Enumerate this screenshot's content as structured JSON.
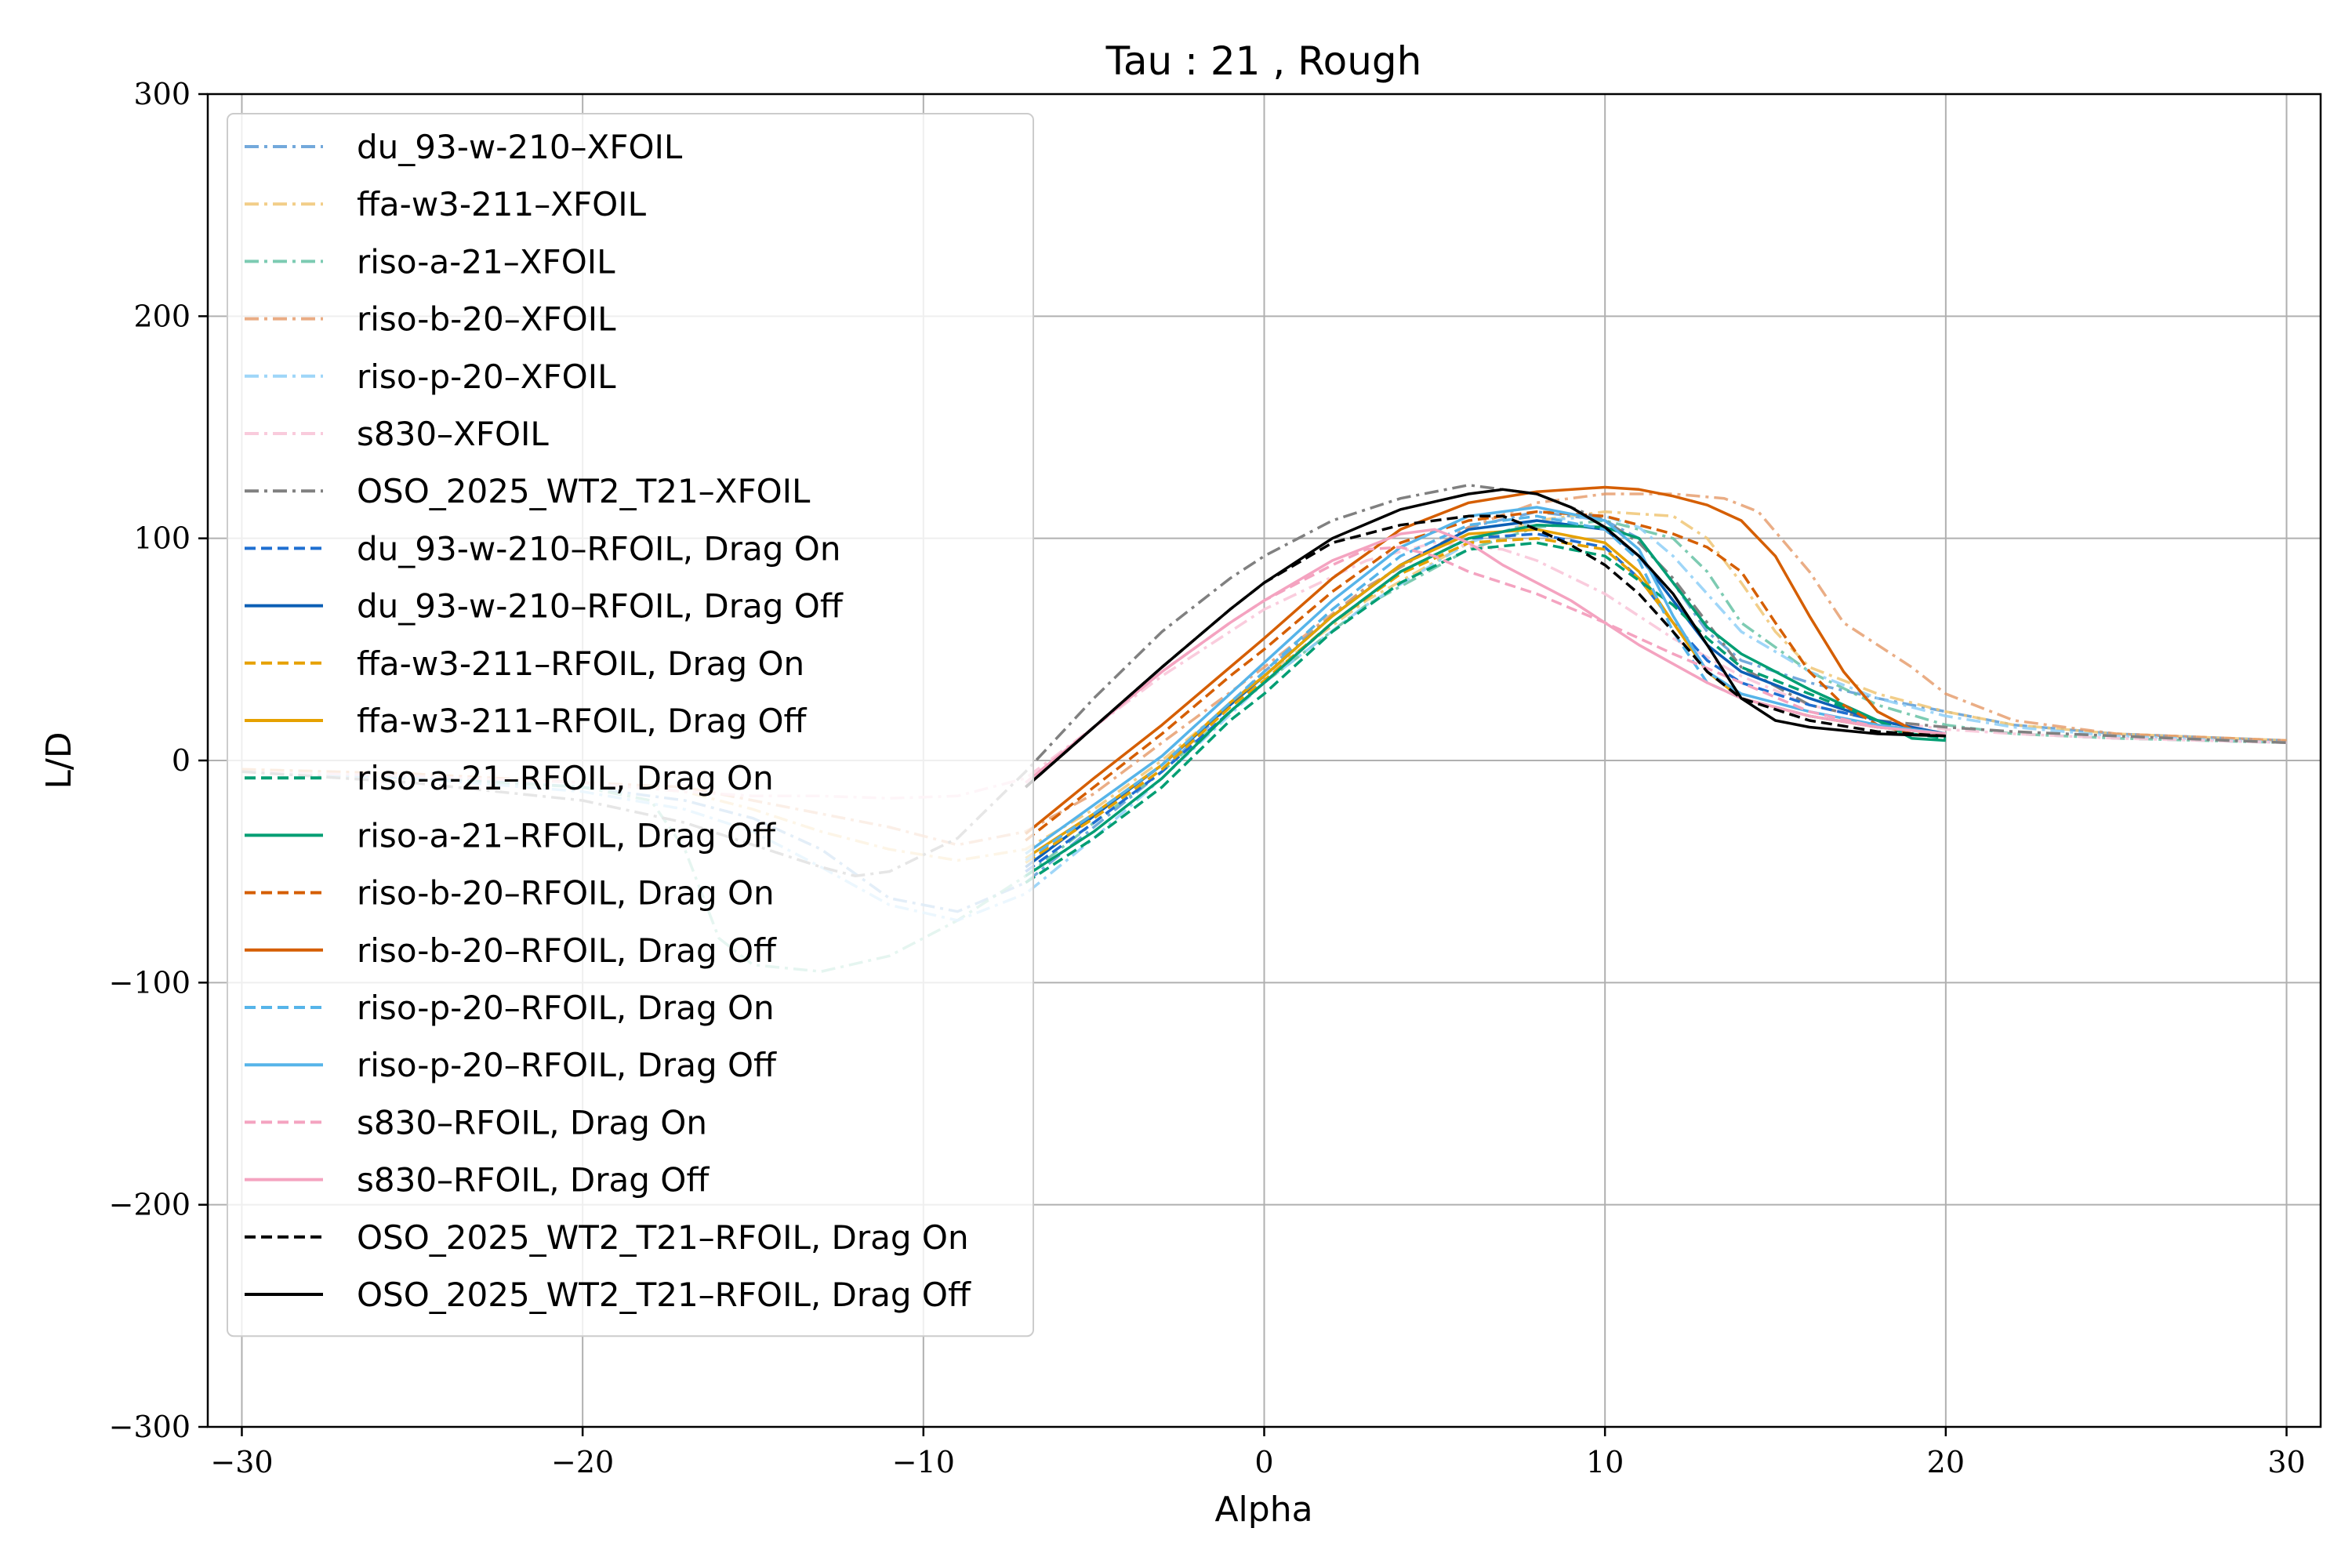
{
  "chart_data": {
    "type": "line",
    "title": "Tau : 21 , Rough",
    "xlabel": "Alpha",
    "ylabel": "L/D",
    "xlim": [
      -31,
      31
    ],
    "ylim": [
      -300,
      300
    ],
    "xticks": [
      -30,
      -20,
      -10,
      0,
      10,
      20,
      30
    ],
    "yticks": [
      -300,
      -200,
      -100,
      0,
      100,
      200,
      300
    ],
    "xtick_labels": [
      "−30",
      "−20",
      "−10",
      "0",
      "10",
      "20",
      "30"
    ],
    "ytick_labels": [
      "−300",
      "−200",
      "−100",
      "0",
      "100",
      "200",
      "300"
    ],
    "grid": true,
    "legend_position": "upper-left",
    "series": [
      {
        "name": "du_93-w-210–XFOIL",
        "color": "#5b9bd5",
        "dash": "dashdot",
        "alpha": 0.85,
        "x": [
          -30,
          -25,
          -20,
          -17,
          -15,
          -13,
          -11,
          -9,
          -7,
          -5,
          -3,
          0,
          3,
          6,
          8,
          10,
          11,
          12,
          13,
          14,
          16,
          18,
          20,
          22,
          25,
          30
        ],
        "y": [
          -5,
          -7,
          -12,
          -18,
          -26,
          -40,
          -62,
          -68,
          -55,
          -30,
          -5,
          40,
          78,
          105,
          112,
          108,
          100,
          80,
          58,
          45,
          35,
          28,
          22,
          16,
          12,
          9
        ]
      },
      {
        "name": "ffa-w3-211–XFOIL",
        "color": "#f0c674",
        "dash": "dashdot",
        "alpha": 0.85,
        "x": [
          -30,
          -25,
          -20,
          -17,
          -15,
          -13,
          -11,
          -9,
          -7,
          -5,
          -3,
          0,
          3,
          6,
          8,
          10,
          12,
          13,
          14,
          15,
          16,
          18,
          20,
          22,
          25,
          30
        ],
        "y": [
          -4,
          -6,
          -10,
          -14,
          -22,
          -32,
          -40,
          -45,
          -40,
          -22,
          0,
          38,
          72,
          98,
          108,
          112,
          110,
          100,
          80,
          58,
          42,
          30,
          22,
          16,
          12,
          9
        ]
      },
      {
        "name": "riso-a-21–XFOIL",
        "color": "#66c2a5",
        "dash": "dashdot",
        "alpha": 0.85,
        "x": [
          -30,
          -25,
          -20,
          -18,
          -17,
          -16,
          -15,
          -13,
          -11,
          -9,
          -7,
          -5,
          -3,
          0,
          3,
          6,
          8,
          10,
          12,
          13,
          14,
          16,
          18,
          20,
          22,
          25,
          30
        ],
        "y": [
          -5,
          -8,
          -12,
          -18,
          -40,
          -80,
          -92,
          -95,
          -88,
          -72,
          -52,
          -28,
          -5,
          35,
          70,
          95,
          105,
          108,
          100,
          85,
          62,
          40,
          25,
          16,
          12,
          10,
          8
        ]
      },
      {
        "name": "riso-b-20–XFOIL",
        "color": "#e59866",
        "dash": "dashdot",
        "alpha": 0.8,
        "x": [
          -30,
          -25,
          -20,
          -17,
          -15,
          -13,
          -11,
          -9,
          -7,
          -5,
          -3,
          0,
          3,
          6,
          8,
          10,
          12,
          13.5,
          14.5,
          16,
          17,
          19,
          20,
          22,
          25,
          30
        ],
        "y": [
          -4,
          -6,
          -10,
          -12,
          -18,
          -24,
          -30,
          -38,
          -32,
          -15,
          8,
          42,
          78,
          105,
          116,
          120,
          120,
          118,
          112,
          85,
          62,
          42,
          30,
          18,
          12,
          9
        ]
      },
      {
        "name": "riso-p-20–XFOIL",
        "color": "#8ecff7",
        "dash": "dashdot",
        "alpha": 0.85,
        "x": [
          -30,
          -25,
          -20,
          -17,
          -15,
          -13,
          -11,
          -9,
          -7,
          -5,
          -3,
          0,
          3,
          6,
          8,
          10,
          11,
          12,
          13,
          14,
          16,
          18,
          20,
          22,
          25,
          30
        ],
        "y": [
          -5,
          -8,
          -14,
          -22,
          -32,
          -48,
          -65,
          -72,
          -60,
          -35,
          -8,
          35,
          70,
          98,
          108,
          110,
          105,
          92,
          75,
          58,
          40,
          28,
          20,
          15,
          11,
          8
        ]
      },
      {
        "name": "s830–XFOIL",
        "color": "#f9c6d9",
        "dash": "dashdot",
        "alpha": 0.9,
        "x": [
          -30,
          -25,
          -20,
          -17,
          -15,
          -13,
          -11,
          -9,
          -7,
          -5,
          -3,
          0,
          3,
          5,
          7,
          8,
          10,
          12,
          14,
          16,
          18,
          20,
          22,
          25,
          30
        ],
        "y": [
          -5,
          -7,
          -10,
          -14,
          -16,
          -16,
          -17,
          -16,
          -8,
          15,
          38,
          68,
          90,
          98,
          95,
          90,
          75,
          55,
          38,
          25,
          18,
          14,
          12,
          10,
          8
        ]
      },
      {
        "name": "OSO_2025_WT2_T21–XFOIL",
        "color": "#808080",
        "dash": "dashdot",
        "alpha": 1,
        "x": [
          -30,
          -25,
          -20,
          -17,
          -15,
          -13,
          -12,
          -11,
          -9,
          -7,
          -5,
          -3,
          -1,
          0,
          2,
          4,
          6,
          8,
          10,
          11,
          12,
          13,
          14,
          16,
          18,
          20,
          22,
          25,
          30
        ],
        "y": [
          -5,
          -10,
          -18,
          -28,
          -38,
          -48,
          -52,
          -50,
          -35,
          -5,
          28,
          58,
          82,
          92,
          108,
          118,
          124,
          120,
          108,
          98,
          82,
          62,
          42,
          25,
          18,
          15,
          13,
          11,
          8
        ]
      },
      {
        "name": "du_93-w-210–RFOIL, Drag On",
        "color": "#1f6fd1",
        "dash": "dashed",
        "alpha": 1,
        "x": [
          -7,
          -5,
          -3,
          -1,
          0,
          2,
          4,
          6,
          8,
          10,
          11,
          12,
          13,
          14,
          16,
          18,
          20
        ],
        "y": [
          -50,
          -28,
          -5,
          22,
          35,
          62,
          85,
          100,
          102,
          96,
          82,
          62,
          45,
          35,
          25,
          18,
          12
        ]
      },
      {
        "name": "du_93-w-210–RFOIL, Drag Off",
        "color": "#0c5fb5",
        "dash": "solid",
        "alpha": 1,
        "x": [
          -7,
          -5,
          -3,
          -1,
          0,
          2,
          4,
          6,
          8,
          10,
          11,
          12,
          13,
          14,
          16,
          18,
          20
        ],
        "y": [
          -48,
          -25,
          -2,
          25,
          38,
          65,
          88,
          104,
          108,
          104,
          92,
          72,
          52,
          40,
          28,
          18,
          12
        ]
      },
      {
        "name": "ffa-w3-211–RFOIL, Drag On",
        "color": "#e6a100",
        "dash": "dashed",
        "alpha": 1,
        "x": [
          -7,
          -5,
          -3,
          -1,
          0,
          2,
          4,
          6,
          8,
          10,
          11,
          12,
          13,
          14,
          16,
          18,
          20
        ],
        "y": [
          -46,
          -26,
          -4,
          24,
          36,
          62,
          84,
          98,
          100,
          95,
          82,
          62,
          40,
          28,
          20,
          15,
          12
        ]
      },
      {
        "name": "ffa-w3-211–RFOIL, Drag Off",
        "color": "#e6a100",
        "dash": "solid",
        "alpha": 1,
        "x": [
          -7,
          -5,
          -3,
          -1,
          0,
          2,
          4,
          6,
          8,
          10,
          11,
          12,
          13,
          14,
          16,
          18,
          20
        ],
        "y": [
          -44,
          -24,
          -2,
          26,
          38,
          65,
          88,
          102,
          104,
          98,
          85,
          62,
          40,
          28,
          20,
          15,
          12
        ]
      },
      {
        "name": "riso-a-21–RFOIL, Drag On",
        "color": "#009e73",
        "dash": "dashed",
        "alpha": 1,
        "x": [
          -7,
          -5,
          -3,
          -1,
          0,
          2,
          4,
          6,
          8,
          10,
          12,
          13,
          14,
          16,
          18,
          19,
          20
        ],
        "y": [
          -55,
          -35,
          -12,
          18,
          30,
          58,
          80,
          95,
          98,
          92,
          70,
          55,
          42,
          30,
          18,
          12,
          10
        ]
      },
      {
        "name": "riso-a-21–RFOIL, Drag Off",
        "color": "#009e73",
        "dash": "solid",
        "alpha": 1,
        "x": [
          -7,
          -5,
          -3,
          -1,
          0,
          2,
          4,
          6,
          8,
          10,
          11,
          12,
          13,
          14,
          16,
          18,
          19,
          20
        ],
        "y": [
          -52,
          -32,
          -8,
          22,
          35,
          62,
          85,
          100,
          106,
          105,
          100,
          80,
          60,
          48,
          32,
          18,
          10,
          9
        ]
      },
      {
        "name": "riso-b-20–RFOIL, Drag On",
        "color": "#d55e00",
        "dash": "dashed",
        "alpha": 1,
        "x": [
          -7,
          -5,
          -3,
          -1,
          0,
          2,
          4,
          6,
          8,
          10,
          12,
          13,
          14,
          15,
          16,
          17,
          18,
          19,
          20
        ],
        "y": [
          -36,
          -12,
          12,
          38,
          50,
          76,
          98,
          108,
          112,
          110,
          102,
          96,
          85,
          62,
          40,
          25,
          16,
          12,
          11
        ]
      },
      {
        "name": "riso-b-20–RFOIL, Drag Off",
        "color": "#d55e00",
        "dash": "solid",
        "alpha": 1,
        "x": [
          -7,
          -5,
          -3,
          -1,
          0,
          2,
          4,
          6,
          8,
          10,
          11,
          12,
          13,
          14,
          15,
          16,
          17,
          18,
          19,
          20
        ],
        "y": [
          -33,
          -8,
          16,
          42,
          55,
          82,
          104,
          116,
          121,
          123,
          122,
          119,
          115,
          108,
          92,
          65,
          40,
          22,
          14,
          12
        ]
      },
      {
        "name": "riso-p-20–RFOIL, Drag On",
        "color": "#56b4e9",
        "dash": "dashed",
        "alpha": 1,
        "x": [
          -7,
          -5,
          -3,
          -1,
          0,
          2,
          4,
          6,
          8,
          10,
          11,
          12,
          13,
          14,
          16,
          18,
          20
        ],
        "y": [
          -45,
          -24,
          -2,
          26,
          40,
          68,
          92,
          106,
          110,
          104,
          90,
          58,
          35,
          28,
          20,
          15,
          12
        ]
      },
      {
        "name": "riso-p-20–RFOIL, Drag Off",
        "color": "#56b4e9",
        "dash": "solid",
        "alpha": 1,
        "x": [
          -7,
          -5,
          -3,
          -1,
          0,
          2,
          4,
          6,
          8,
          10,
          11,
          12,
          13,
          14,
          16,
          18,
          20
        ],
        "y": [
          -42,
          -20,
          2,
          30,
          44,
          72,
          96,
          110,
          114,
          108,
          95,
          65,
          40,
          30,
          22,
          16,
          12
        ]
      },
      {
        "name": "s830–RFOIL, Drag On",
        "color": "#f4a3c0",
        "dash": "dashed",
        "alpha": 1,
        "x": [
          -7,
          -5,
          -3,
          -1,
          0,
          2,
          3,
          4,
          5,
          6,
          8,
          10,
          12,
          14,
          16,
          18,
          20
        ],
        "y": [
          -10,
          15,
          40,
          62,
          72,
          88,
          95,
          96,
          92,
          85,
          75,
          62,
          48,
          35,
          22,
          15,
          12
        ]
      },
      {
        "name": "s830–RFOIL, Drag Off",
        "color": "#f4a3c0",
        "dash": "solid",
        "alpha": 1,
        "x": [
          -7,
          -5,
          -3,
          -1,
          0,
          2,
          4,
          5,
          6,
          7,
          9,
          11,
          13,
          14,
          16,
          18,
          20
        ],
        "y": [
          -10,
          15,
          40,
          62,
          72,
          90,
          102,
          104,
          98,
          88,
          72,
          52,
          35,
          28,
          20,
          15,
          12
        ]
      },
      {
        "name": "OSO_2025_WT2_T21–RFOIL, Drag On",
        "color": "#000000",
        "dash": "dashed",
        "alpha": 1,
        "x": [
          -7,
          -5,
          -3,
          -1,
          0,
          2,
          4,
          6,
          7,
          8,
          9,
          10,
          11,
          12,
          13,
          14,
          16,
          18,
          20
        ],
        "y": [
          -12,
          15,
          42,
          68,
          80,
          98,
          106,
          110,
          110,
          104,
          97,
          88,
          75,
          58,
          40,
          28,
          18,
          13,
          11
        ]
      },
      {
        "name": "OSO_2025_WT2_T21–RFOIL, Drag Off",
        "color": "#000000",
        "dash": "solid",
        "alpha": 1,
        "x": [
          -7,
          -5,
          -3,
          -1,
          0,
          2,
          4,
          6,
          7,
          8,
          9,
          10,
          11,
          12,
          13,
          14,
          15,
          16,
          18,
          20
        ],
        "y": [
          -12,
          15,
          42,
          68,
          80,
          100,
          113,
          120,
          122,
          120,
          114,
          105,
          92,
          75,
          52,
          28,
          18,
          15,
          12,
          11
        ]
      }
    ]
  }
}
